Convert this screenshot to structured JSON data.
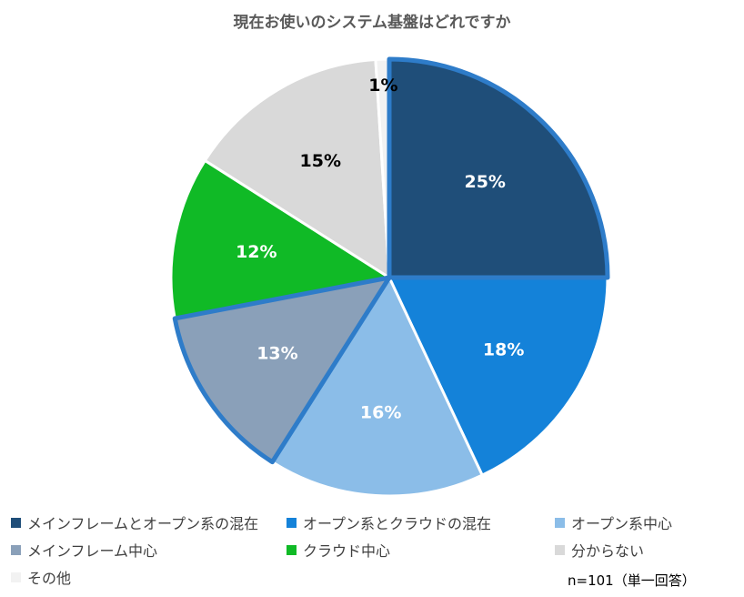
{
  "chart_data": {
    "type": "pie",
    "title": "現在お使いのシステム基盤はどれですか",
    "note": "n=101（単一回答）",
    "start_angle_deg": 0,
    "direction": "clockwise",
    "slices": [
      {
        "label": "メインフレームとオープン系の混在",
        "value": 25,
        "display": "25%",
        "color": "#1f4e79",
        "label_color": "#ffffff",
        "highlight": true
      },
      {
        "label": "オープン系とクラウドの混在",
        "value": 18,
        "display": "18%",
        "color": "#1482d9",
        "label_color": "#ffffff",
        "highlight": false
      },
      {
        "label": "オープン系中心",
        "value": 16,
        "display": "16%",
        "color": "#8bbde8",
        "label_color": "#ffffff",
        "highlight": false
      },
      {
        "label": "メインフレーム中心",
        "value": 13,
        "display": "13%",
        "color": "#8aa0b9",
        "label_color": "#ffffff",
        "highlight": true
      },
      {
        "label": "クラウド中心",
        "value": 12,
        "display": "12%",
        "color": "#10ba26",
        "label_color": "#ffffff",
        "highlight": false
      },
      {
        "label": "分からない",
        "value": 15,
        "display": "15%",
        "color": "#d9d9d9",
        "label_color": "#000000",
        "highlight": false
      },
      {
        "label": "その他",
        "value": 1,
        "display": "1%",
        "color": "#f2f2f2",
        "label_color": "#000000",
        "highlight": false
      }
    ],
    "highlight_color": "#2e7cc9",
    "legend_position": "bottom"
  }
}
